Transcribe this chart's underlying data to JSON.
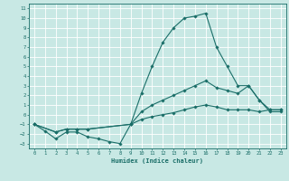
{
  "xlabel": "Humidex (Indice chaleur)",
  "xlim": [
    -0.5,
    23.5
  ],
  "ylim": [
    -3.5,
    11.5
  ],
  "xticks": [
    0,
    1,
    2,
    3,
    4,
    5,
    6,
    7,
    8,
    9,
    10,
    11,
    12,
    13,
    14,
    15,
    16,
    17,
    18,
    19,
    20,
    21,
    22,
    23
  ],
  "yticks": [
    -3,
    -2,
    -1,
    0,
    1,
    2,
    3,
    4,
    5,
    6,
    7,
    8,
    9,
    10,
    11
  ],
  "bg_color": "#c8e8e4",
  "grid_color": "#ffffff",
  "line_color": "#1a6e68",
  "line1_x": [
    0,
    1,
    2,
    3,
    4,
    5,
    6,
    7,
    8,
    9,
    10,
    11,
    12,
    13,
    14,
    15,
    16,
    17,
    18,
    19,
    20,
    21,
    22,
    23
  ],
  "line1_y": [
    -1.0,
    -1.7,
    -2.5,
    -1.8,
    -1.8,
    -2.3,
    -2.5,
    -2.8,
    -3.0,
    -1.0,
    2.2,
    5.0,
    7.5,
    9.0,
    10.0,
    10.2,
    10.5,
    7.0,
    5.0,
    3.0,
    3.0,
    1.5,
    0.3,
    0.3
  ],
  "line2_x": [
    0,
    2,
    3,
    4,
    5,
    9,
    10,
    11,
    12,
    13,
    14,
    15,
    16,
    17,
    18,
    19,
    20,
    21,
    22,
    23
  ],
  "line2_y": [
    -1.0,
    -1.8,
    -1.5,
    -1.5,
    -1.5,
    -1.0,
    0.3,
    1.0,
    1.5,
    2.0,
    2.5,
    3.0,
    3.5,
    2.8,
    2.5,
    2.2,
    3.0,
    1.5,
    0.5,
    0.5
  ],
  "line3_x": [
    0,
    2,
    3,
    4,
    5,
    9,
    10,
    11,
    12,
    13,
    14,
    15,
    16,
    17,
    18,
    19,
    20,
    21,
    22,
    23
  ],
  "line3_y": [
    -1.0,
    -1.8,
    -1.5,
    -1.5,
    -1.5,
    -1.0,
    -0.5,
    -0.2,
    0.0,
    0.2,
    0.5,
    0.8,
    1.0,
    0.8,
    0.5,
    0.5,
    0.5,
    0.3,
    0.5,
    0.5
  ]
}
